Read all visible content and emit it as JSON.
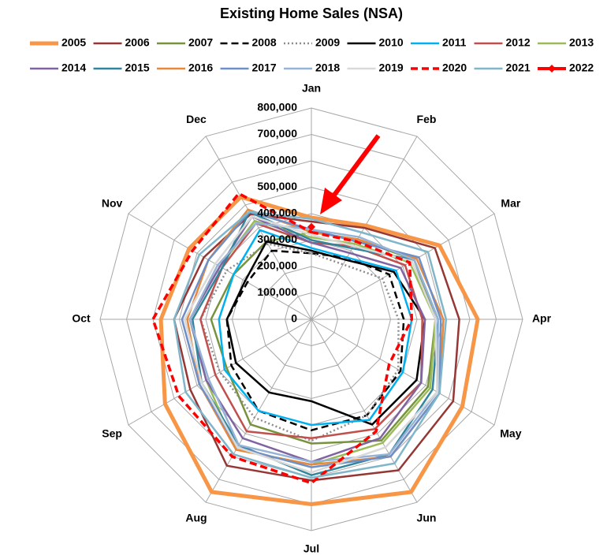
{
  "chart_data": {
    "type": "radar",
    "title": "Existing Home Sales (NSA)",
    "categories": [
      "Jan",
      "Feb",
      "Mar",
      "Apr",
      "May",
      "Jun",
      "Jul",
      "Aug",
      "Sep",
      "Oct",
      "Nov",
      "Dec"
    ],
    "ylim": [
      0,
      800000
    ],
    "yticks": [
      0,
      {
        "value": 100000,
        "label": "100,000"
      },
      {
        "value": 200000,
        "label": "200,000"
      },
      {
        "value": 300000,
        "label": "300,000"
      },
      {
        "value": 400000,
        "label": "400,000"
      },
      {
        "value": 500000,
        "label": "500,000"
      },
      {
        "value": 600000,
        "label": "600,000"
      },
      {
        "value": 700000,
        "label": "700,000"
      },
      {
        "value": 800000,
        "label": "800,000"
      }
    ],
    "grid": true,
    "series": [
      {
        "name": "2005",
        "color": "#f79646",
        "width": 5,
        "dash": "solid",
        "values": [
          385000,
          410000,
          560000,
          630000,
          660000,
          755000,
          700000,
          755000,
          640000,
          570000,
          535000,
          535000
        ]
      },
      {
        "name": "2006",
        "color": "#953735",
        "width": 2.5,
        "dash": "solid",
        "values": [
          370000,
          400000,
          540000,
          560000,
          620000,
          660000,
          610000,
          640000,
          530000,
          520000,
          470000,
          460000
        ]
      },
      {
        "name": "2007",
        "color": "#77933c",
        "width": 2.5,
        "dash": "solid",
        "values": [
          330000,
          350000,
          450000,
          470000,
          510000,
          530000,
          470000,
          460000,
          370000,
          380000,
          340000,
          340000
        ]
      },
      {
        "name": "2008",
        "color": "#000000",
        "width": 2.5,
        "dash": "dashed",
        "values": [
          250000,
          270000,
          340000,
          350000,
          390000,
          420000,
          420000,
          400000,
          350000,
          320000,
          280000,
          300000
        ]
      },
      {
        "name": "2009",
        "color": "#8c8c8c",
        "width": 2.5,
        "dash": "dotted",
        "values": [
          250000,
          240000,
          310000,
          330000,
          380000,
          420000,
          460000,
          430000,
          400000,
          420000,
          370000,
          330000
        ]
      },
      {
        "name": "2010",
        "color": "#000000",
        "width": 2.5,
        "dash": "solid",
        "values": [
          260000,
          260000,
          360000,
          430000,
          460000,
          460000,
          310000,
          320000,
          330000,
          320000,
          290000,
          340000
        ]
      },
      {
        "name": "2011",
        "color": "#00b0f0",
        "width": 2.5,
        "dash": "solid",
        "values": [
          270000,
          270000,
          370000,
          380000,
          400000,
          440000,
          400000,
          400000,
          380000,
          350000,
          340000,
          390000
        ]
      },
      {
        "name": "2012",
        "color": "#c0504d",
        "width": 2.5,
        "dash": "solid",
        "values": [
          290000,
          320000,
          410000,
          420000,
          480000,
          480000,
          450000,
          490000,
          420000,
          420000,
          390000,
          420000
        ]
      },
      {
        "name": "2013",
        "color": "#9bbb59",
        "width": 2.5,
        "dash": "solid",
        "values": [
          310000,
          330000,
          430000,
          470000,
          520000,
          540000,
          550000,
          570000,
          460000,
          460000,
          400000,
          430000
        ]
      },
      {
        "name": "2014",
        "color": "#8064a2",
        "width": 2.5,
        "dash": "solid",
        "values": [
          290000,
          290000,
          390000,
          430000,
          480000,
          520000,
          540000,
          520000,
          460000,
          460000,
          400000,
          450000
        ]
      },
      {
        "name": "2015",
        "color": "#31859c",
        "width": 2.5,
        "dash": "solid",
        "values": [
          300000,
          310000,
          450000,
          480000,
          530000,
          590000,
          590000,
          550000,
          480000,
          450000,
          390000,
          470000
        ]
      },
      {
        "name": "2016",
        "color": "#e8883a",
        "width": 2.5,
        "dash": "solid",
        "values": [
          330000,
          350000,
          460000,
          500000,
          560000,
          600000,
          550000,
          570000,
          490000,
          470000,
          450000,
          480000
        ]
      },
      {
        "name": "2017",
        "color": "#6f8fc8",
        "width": 2.5,
        "dash": "solid",
        "values": [
          340000,
          340000,
          470000,
          490000,
          560000,
          600000,
          560000,
          560000,
          490000,
          490000,
          450000,
          470000
        ]
      },
      {
        "name": "2018",
        "color": "#95b3d7",
        "width": 2.5,
        "dash": "solid",
        "values": [
          340000,
          360000,
          450000,
          480000,
          550000,
          590000,
          540000,
          550000,
          450000,
          460000,
          410000,
          420000
        ]
      },
      {
        "name": "2019",
        "color": "#d9d9d9",
        "width": 2.5,
        "dash": "solid",
        "values": [
          320000,
          320000,
          440000,
          470000,
          550000,
          560000,
          580000,
          560000,
          480000,
          480000,
          420000,
          450000
        ]
      },
      {
        "name": "2020",
        "color": "#ff0000",
        "width": 3.5,
        "dash": "dashed",
        "values": [
          330000,
          340000,
          430000,
          380000,
          340000,
          490000,
          620000,
          600000,
          580000,
          600000,
          520000,
          550000
        ]
      },
      {
        "name": "2021",
        "color": "#7fb6c9",
        "width": 2.5,
        "dash": "solid",
        "values": [
          380000,
          380000,
          510000,
          510000,
          560000,
          630000,
          600000,
          590000,
          550000,
          520000,
          490000,
          470000
        ]
      },
      {
        "name": "2022",
        "color": "#ff0000",
        "width": 4,
        "dash": "solid",
        "marker": "diamond",
        "values": [
          350000,
          null,
          null,
          null,
          null,
          null,
          null,
          null,
          null,
          null,
          null,
          null
        ]
      }
    ]
  }
}
